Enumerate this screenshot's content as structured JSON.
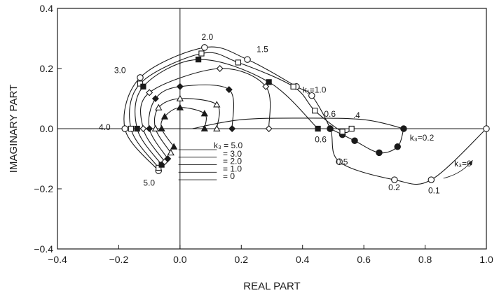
{
  "chart_data": {
    "type": "line",
    "title": "",
    "xlabel": "REAL PART",
    "ylabel": "IMAGINARY PART",
    "xlim": [
      -0.4,
      1.0
    ],
    "ylim": [
      -0.4,
      0.4
    ],
    "x_ticks": [
      "−0.4",
      "−0.2",
      "0.0",
      "0.2",
      "0.4",
      "0.6",
      "0.8",
      "1.0"
    ],
    "y_ticks": [
      "−0.4",
      "−0.2",
      "0.0",
      "0.2",
      "0.4"
    ],
    "grid": false,
    "zero_lines": true,
    "series": [
      {
        "marker": "open-circle",
        "points": [
          [
            1.0,
            0.0
          ],
          [
            0.82,
            -0.17
          ],
          [
            0.7,
            -0.17
          ],
          [
            0.52,
            -0.11
          ],
          [
            0.49,
            0.0
          ],
          [
            0.43,
            0.11
          ],
          [
            0.38,
            0.14
          ],
          [
            0.22,
            0.23
          ],
          [
            0.08,
            0.27
          ],
          [
            -0.13,
            0.17
          ],
          [
            -0.18,
            0.0
          ],
          [
            -0.07,
            -0.14
          ]
        ]
      },
      {
        "marker": "filled-circle",
        "points": [
          [
            0.73,
            0.0
          ],
          [
            0.71,
            -0.06
          ],
          [
            0.65,
            -0.08
          ],
          [
            0.57,
            -0.04
          ],
          [
            0.53,
            -0.02
          ],
          [
            0.49,
            0.0
          ]
        ]
      },
      {
        "marker": "open-square",
        "points": [
          [
            0.56,
            0.0
          ],
          [
            0.53,
            -0.01
          ],
          [
            0.44,
            0.06
          ],
          [
            0.37,
            0.14
          ],
          [
            0.19,
            0.22
          ],
          [
            0.07,
            0.25
          ],
          [
            -0.13,
            0.15
          ],
          [
            -0.16,
            0.0
          ],
          [
            -0.07,
            -0.13
          ]
        ]
      },
      {
        "marker": "filled-square",
        "points": [
          [
            0.45,
            0.0
          ],
          [
            0.29,
            0.155
          ],
          [
            0.06,
            0.23
          ],
          [
            -0.12,
            0.14
          ],
          [
            -0.14,
            0.0
          ],
          [
            -0.06,
            -0.12
          ]
        ]
      },
      {
        "marker": "open-diamond",
        "points": [
          [
            0.29,
            0.0
          ],
          [
            0.28,
            0.14
          ],
          [
            0.13,
            0.2
          ],
          [
            -0.1,
            0.12
          ],
          [
            -0.12,
            0.0
          ],
          [
            -0.05,
            -0.11
          ]
        ]
      },
      {
        "marker": "filled-diamond",
        "points": [
          [
            0.17,
            0.0
          ],
          [
            0.16,
            0.13
          ],
          [
            0.0,
            0.14
          ],
          [
            -0.08,
            0.1
          ],
          [
            -0.1,
            0.0
          ],
          [
            -0.04,
            -0.1
          ]
        ]
      },
      {
        "marker": "open-triangle",
        "points": [
          [
            0.12,
            0.0
          ],
          [
            0.12,
            0.08
          ],
          [
            0.0,
            0.1
          ],
          [
            -0.07,
            0.07
          ],
          [
            -0.08,
            0.0
          ],
          [
            -0.03,
            -0.08
          ]
        ]
      },
      {
        "marker": "filled-triangle",
        "points": [
          [
            0.08,
            0.0
          ],
          [
            0.08,
            0.05
          ],
          [
            0.0,
            0.07
          ],
          [
            -0.05,
            0.04
          ],
          [
            -0.06,
            0.0
          ],
          [
            -0.02,
            -0.06
          ]
        ]
      },
      {
        "marker": "none",
        "points": [
          [
            0.73,
            0.0
          ],
          [
            0.6,
            0.03
          ],
          [
            0.4,
            0.035
          ],
          [
            0.2,
            0.03
          ],
          [
            0.04,
            0.0
          ]
        ]
      }
    ],
    "annotations": [
      {
        "text": "2.0",
        "x": 0.07,
        "y": 0.295
      },
      {
        "text": "1.5",
        "x": 0.25,
        "y": 0.255
      },
      {
        "text": "3.0",
        "x": -0.215,
        "y": 0.185
      },
      {
        "text": "k₁=1.0",
        "x": 0.4,
        "y": 0.12
      },
      {
        "text": "0.6",
        "x": 0.47,
        "y": 0.04
      },
      {
        "text": ".4",
        "x": 0.565,
        "y": 0.035
      },
      {
        "text": "0.6",
        "x": 0.44,
        "y": -0.045
      },
      {
        "text": "k₃=0.2",
        "x": 0.75,
        "y": -0.04
      },
      {
        "text": "4.0",
        "x": -0.265,
        "y": -0.005
      },
      {
        "text": "0.5",
        "x": 0.51,
        "y": -0.12
      },
      {
        "text": "5.0",
        "x": -0.12,
        "y": -0.19
      },
      {
        "text": "0.2",
        "x": 0.68,
        "y": -0.205
      },
      {
        "text": "0.1",
        "x": 0.81,
        "y": -0.215
      },
      {
        "text": "k₃=0",
        "x": 0.895,
        "y": -0.125
      },
      {
        "text": "k₃ = 5.0",
        "x": 0.11,
        "y": -0.065
      },
      {
        "text": "= 3.0",
        "x": 0.14,
        "y": -0.093
      },
      {
        "text": "= 2.0",
        "x": 0.14,
        "y": -0.118
      },
      {
        "text": "= 1.0",
        "x": 0.14,
        "y": -0.143
      },
      {
        "text": "= 0",
        "x": 0.14,
        "y": -0.168
      }
    ]
  }
}
